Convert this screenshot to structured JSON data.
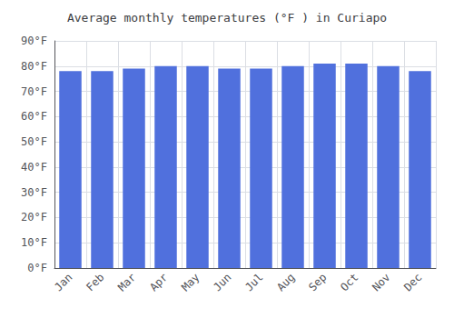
{
  "chart_data": {
    "type": "bar",
    "title": "Average monthly temperatures (°F ) in Curiapo",
    "categories": [
      "Jan",
      "Feb",
      "Mar",
      "Apr",
      "May",
      "Jun",
      "Jul",
      "Aug",
      "Sep",
      "Oct",
      "Nov",
      "Dec"
    ],
    "values": [
      78,
      78,
      79,
      80,
      80,
      79,
      79,
      80,
      81,
      81,
      80,
      78
    ],
    "ylim": [
      0,
      90
    ],
    "yticks": [
      {
        "value": 0,
        "label": "0°F"
      },
      {
        "value": 10,
        "label": "10°F"
      },
      {
        "value": 20,
        "label": "20°F"
      },
      {
        "value": 30,
        "label": "30°F"
      },
      {
        "value": 40,
        "label": "40°F"
      },
      {
        "value": 50,
        "label": "50°F"
      },
      {
        "value": 60,
        "label": "60°F"
      },
      {
        "value": 70,
        "label": "70°F"
      },
      {
        "value": 80,
        "label": "80°F"
      },
      {
        "value": 90,
        "label": "90°F"
      }
    ],
    "grid": true
  }
}
